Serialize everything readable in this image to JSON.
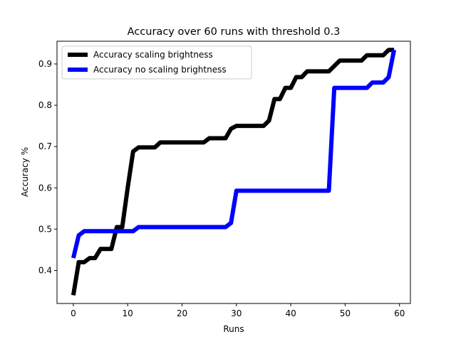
{
  "chart_data": {
    "type": "line",
    "title": "Accuracy over 60 runs with threshold 0.3",
    "xlabel": "Runs",
    "ylabel": "Accuracy %",
    "xlim": [
      -3,
      62
    ],
    "ylim": [
      0.32,
      0.955
    ],
    "xticks": [
      0,
      10,
      20,
      30,
      40,
      50,
      60
    ],
    "yticks": [
      0.4,
      0.5,
      0.6,
      0.7,
      0.8,
      0.9
    ],
    "grid": false,
    "legend_position": "top-left",
    "series": [
      {
        "name": "Accuracy scaling brightness",
        "color": "#000000",
        "x": [
          0,
          1,
          2,
          3,
          4,
          5,
          6,
          7,
          8,
          9,
          10,
          11,
          12,
          13,
          14,
          15,
          16,
          17,
          18,
          19,
          20,
          21,
          22,
          23,
          24,
          25,
          26,
          27,
          28,
          29,
          30,
          31,
          32,
          33,
          34,
          35,
          36,
          37,
          38,
          39,
          40,
          41,
          42,
          43,
          44,
          45,
          46,
          47,
          48,
          49,
          50,
          51,
          52,
          53,
          54,
          55,
          56,
          57,
          58,
          59
        ],
        "y": [
          0.34,
          0.42,
          0.42,
          0.43,
          0.43,
          0.452,
          0.452,
          0.452,
          0.505,
          0.505,
          0.6,
          0.688,
          0.698,
          0.698,
          0.698,
          0.698,
          0.71,
          0.71,
          0.71,
          0.71,
          0.71,
          0.71,
          0.71,
          0.71,
          0.71,
          0.72,
          0.72,
          0.72,
          0.72,
          0.743,
          0.75,
          0.75,
          0.75,
          0.75,
          0.75,
          0.75,
          0.763,
          0.815,
          0.815,
          0.842,
          0.842,
          0.868,
          0.868,
          0.882,
          0.882,
          0.882,
          0.882,
          0.882,
          0.895,
          0.908,
          0.908,
          0.908,
          0.908,
          0.908,
          0.921,
          0.921,
          0.921,
          0.921,
          0.934,
          0.934
        ]
      },
      {
        "name": "Accuracy no scaling brightness",
        "color": "#0000ff",
        "x": [
          0,
          1,
          2,
          3,
          4,
          5,
          6,
          7,
          8,
          9,
          10,
          11,
          12,
          13,
          14,
          15,
          16,
          17,
          18,
          19,
          20,
          21,
          22,
          23,
          24,
          25,
          26,
          27,
          28,
          29,
          30,
          31,
          32,
          33,
          34,
          35,
          36,
          37,
          38,
          39,
          40,
          41,
          42,
          43,
          44,
          45,
          46,
          47,
          48,
          49,
          50,
          51,
          52,
          53,
          54,
          55,
          56,
          57,
          58,
          59
        ],
        "y": [
          0.43,
          0.485,
          0.495,
          0.495,
          0.495,
          0.495,
          0.495,
          0.495,
          0.495,
          0.495,
          0.495,
          0.495,
          0.505,
          0.505,
          0.505,
          0.505,
          0.505,
          0.505,
          0.505,
          0.505,
          0.505,
          0.505,
          0.505,
          0.505,
          0.505,
          0.505,
          0.505,
          0.505,
          0.505,
          0.515,
          0.593,
          0.593,
          0.593,
          0.593,
          0.593,
          0.593,
          0.593,
          0.593,
          0.593,
          0.593,
          0.593,
          0.593,
          0.593,
          0.593,
          0.593,
          0.593,
          0.593,
          0.593,
          0.842,
          0.842,
          0.842,
          0.842,
          0.842,
          0.842,
          0.842,
          0.855,
          0.855,
          0.855,
          0.868,
          0.934
        ]
      }
    ]
  }
}
